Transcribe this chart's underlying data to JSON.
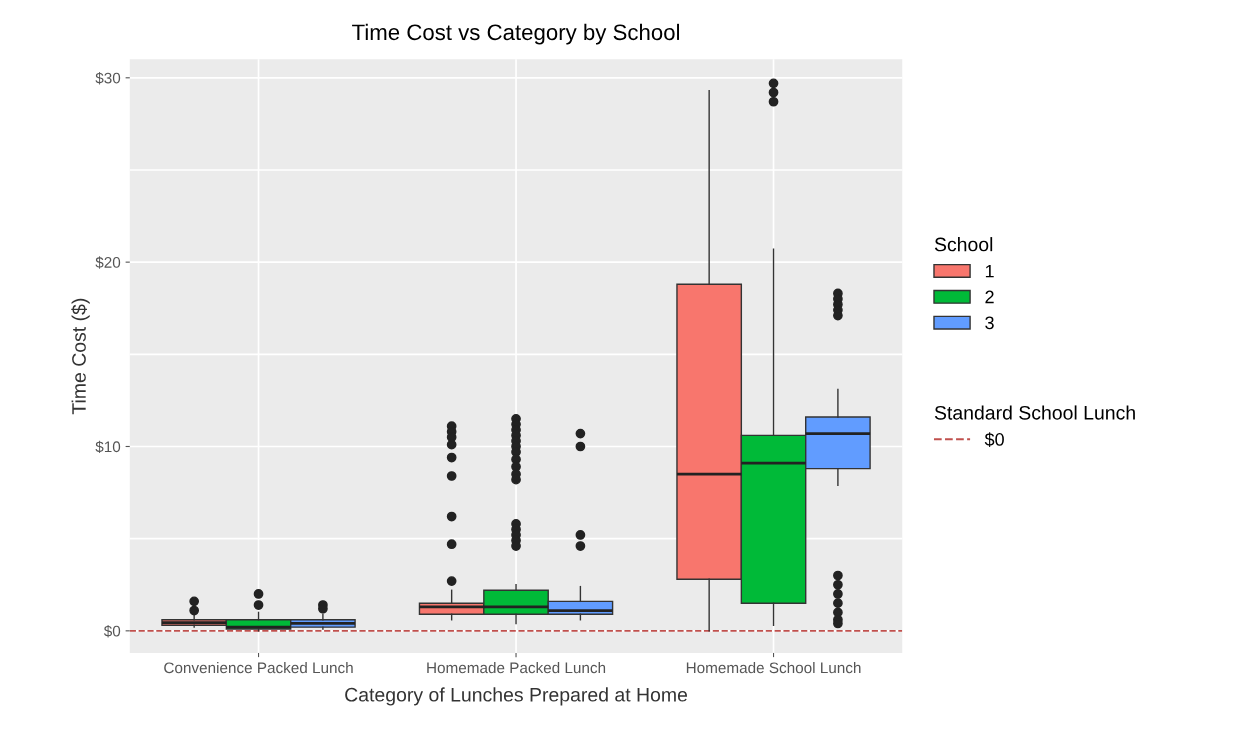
{
  "chart_data": {
    "type": "box",
    "title": "Time Cost vs Category by School",
    "xlabel": "Category of Lunches Prepared at Home",
    "ylabel": "Time Cost ($)",
    "legend_title": "School",
    "annotations": [
      "Standard School Lunch"
    ],
    "categories": [
      "Convenience Packed Lunch",
      "Homemade Packed Lunch",
      "Homemade School Lunch"
    ],
    "series": [
      {
        "name": "1",
        "color": "#f8766d",
        "boxes": [
          {
            "low": 0.2,
            "q1": 0.3,
            "median": 0.45,
            "q3": 0.6,
            "high": 0.9,
            "outliers": [
              1.6,
              1.1
            ]
          },
          {
            "low": 0.6,
            "q1": 0.9,
            "median": 1.3,
            "q3": 1.5,
            "high": 2.2,
            "outliers": [
              11.1,
              10.8,
              10.5,
              10.1,
              9.4,
              8.4,
              6.2,
              4.7,
              2.7
            ]
          },
          {
            "low": 0,
            "q1": 2.8,
            "median": 8.5,
            "q3": 18.8,
            "high": 29.3
          }
        ]
      },
      {
        "name": "2",
        "color": "#00ba38",
        "boxes": [
          {
            "low": 0,
            "q1": 0.1,
            "median": 0.2,
            "q3": 0.6,
            "high": 1.0,
            "outliers": [
              2.0,
              1.4
            ]
          },
          {
            "low": 0.4,
            "q1": 0.9,
            "median": 1.3,
            "q3": 2.2,
            "high": 2.5,
            "outliers": [
              11.5,
              11.2,
              10.9,
              10.6,
              10.3,
              10.0,
              9.7,
              9.3,
              8.9,
              8.5,
              8.2,
              5.8,
              5.5,
              5.2,
              4.9,
              4.6
            ]
          },
          {
            "low": 0.3,
            "q1": 1.5,
            "median": 9.1,
            "q3": 10.6,
            "high": 20.7,
            "outliers": [
              29.7,
              29.2,
              28.7
            ]
          }
        ]
      },
      {
        "name": "3",
        "color": "#619cff",
        "boxes": [
          {
            "low": 0.1,
            "q1": 0.2,
            "median": 0.4,
            "q3": 0.6,
            "high": 0.9,
            "outliers": [
              1.4,
              1.2
            ]
          },
          {
            "low": 0.6,
            "q1": 0.9,
            "median": 1.1,
            "q3": 1.6,
            "high": 2.4,
            "outliers": [
              10.7,
              10.0,
              5.2,
              4.6
            ]
          },
          {
            "low": 7.9,
            "q1": 8.8,
            "median": 10.7,
            "q3": 11.6,
            "high": 13.1,
            "outliers": [
              18.3,
              18.0,
              17.7,
              17.4,
              17.1,
              3.0,
              2.5,
              2.0,
              1.5,
              1.0,
              0.6,
              0.4
            ]
          }
        ]
      }
    ],
    "ref_lines": [
      {
        "axis": "y",
        "value": 0,
        "label": "$0",
        "color": "#c0504d",
        "line_style": "dashed"
      }
    ],
    "ylim": [
      -1.2,
      31.0
    ],
    "yticks": [
      {
        "value": 0,
        "label": "$0"
      },
      {
        "value": 5,
        "label": null
      },
      {
        "value": 10,
        "label": "$10"
      },
      {
        "value": 15,
        "label": null
      },
      {
        "value": 20,
        "label": "$20"
      },
      {
        "value": 25,
        "label": null
      },
      {
        "value": 30,
        "label": "$30"
      }
    ],
    "grid": true,
    "legend": "right"
  }
}
